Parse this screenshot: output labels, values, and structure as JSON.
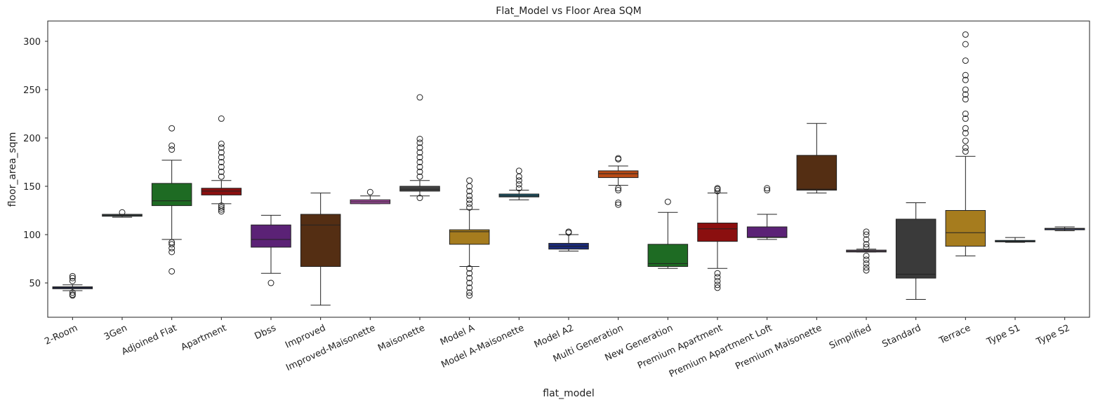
{
  "chart_data": {
    "type": "box",
    "title": "Flat_Model vs Floor Area SQM",
    "x_label": "flat_model",
    "y_label": "floor_area_sqm",
    "categories": [
      "2-Room",
      "3Gen",
      "Adjoined Flat",
      "Apartment",
      "Dbss",
      "Improved",
      "Improved-Maisonette",
      "Maisonette",
      "Model A",
      "Model A-Maisonette",
      "Model A2",
      "Multi Generation",
      "New Generation",
      "Premium Apartment",
      "Premium Apartment Loft",
      "Premium Maisonette",
      "Simplified",
      "Standard",
      "Terrace",
      "Type S1",
      "Type S2"
    ],
    "boxes": [
      {
        "color": "#1f2a5c",
        "low": 42,
        "q1": 44,
        "median": 45,
        "q3": 46,
        "high": 48,
        "outliers": [
          37,
          38,
          40,
          52,
          55,
          57
        ]
      },
      {
        "color": "#4a5a5a",
        "low": 118,
        "q1": 119,
        "median": 120,
        "q3": 121,
        "high": 121,
        "outliers": [
          123
        ]
      },
      {
        "color": "#1e6b23",
        "low": 95,
        "q1": 130,
        "median": 135,
        "q3": 153,
        "high": 177,
        "outliers": [
          62,
          82,
          86,
          90,
          92,
          188,
          192,
          210
        ]
      },
      {
        "color": "#8b0f0f",
        "low": 132,
        "q1": 141,
        "median": 145,
        "q3": 148,
        "high": 156,
        "outliers": [
          124,
          126,
          128,
          130,
          160,
          165,
          170,
          175,
          180,
          185,
          190,
          194,
          220
        ]
      },
      {
        "color": "#5b2276",
        "low": 60,
        "q1": 87,
        "median": 95,
        "q3": 110,
        "high": 120,
        "outliers": [
          50
        ]
      },
      {
        "color": "#542e13",
        "low": 27,
        "q1": 67,
        "median": 110,
        "q3": 121,
        "high": 143,
        "outliers": []
      },
      {
        "color": "#a14b9e",
        "low": 132,
        "q1": 132,
        "median": 134,
        "q3": 136,
        "high": 140,
        "outliers": [
          144
        ]
      },
      {
        "color": "#444444",
        "low": 140,
        "q1": 145,
        "median": 147,
        "q3": 150,
        "high": 156,
        "outliers": [
          138,
          160,
          165,
          170,
          175,
          180,
          185,
          190,
          195,
          199,
          242
        ]
      },
      {
        "color": "#a67c1e",
        "low": 67,
        "q1": 90,
        "median": 103,
        "q3": 105,
        "high": 126,
        "outliers": [
          37,
          40,
          45,
          50,
          55,
          60,
          65,
          128,
          132,
          136,
          140,
          145,
          150,
          156
        ]
      },
      {
        "color": "#1e5a6e",
        "low": 136,
        "q1": 139,
        "median": 140,
        "q3": 142,
        "high": 146,
        "outliers": [
          148,
          152,
          156,
          160,
          166
        ]
      },
      {
        "color": "#1a2a78",
        "low": 83,
        "q1": 85,
        "median": 88,
        "q3": 91,
        "high": 100,
        "outliers": [
          102,
          103
        ]
      },
      {
        "color": "#b84a15",
        "low": 151,
        "q1": 159,
        "median": 163,
        "q3": 166,
        "high": 171,
        "outliers": [
          131,
          133,
          146,
          148,
          178,
          179
        ]
      },
      {
        "color": "#1e6b23",
        "low": 65,
        "q1": 67,
        "median": 70,
        "q3": 90,
        "high": 123,
        "outliers": [
          134
        ]
      },
      {
        "color": "#8b0f0f",
        "low": 65,
        "q1": 93,
        "median": 106,
        "q3": 112,
        "high": 143,
        "outliers": [
          45,
          48,
          52,
          56,
          60,
          145,
          147,
          148
        ]
      },
      {
        "color": "#5b2276",
        "low": 95,
        "q1": 97,
        "median": 97.5,
        "q3": 108,
        "high": 121,
        "outliers": [
          146,
          148
        ]
      },
      {
        "color": "#542e13",
        "low": 143,
        "q1": 146,
        "median": 147,
        "q3": 182,
        "high": 215,
        "outliers": []
      },
      {
        "color": "#8a6a8a",
        "low": 82,
        "q1": 82,
        "median": 83,
        "q3": 84,
        "high": 85,
        "outliers": [
          63,
          66,
          70,
          74,
          78,
          87,
          90,
          95,
          100,
          103
        ]
      },
      {
        "color": "#3a3a3a",
        "low": 33,
        "q1": 55,
        "median": 59,
        "q3": 116,
        "high": 133,
        "outliers": []
      },
      {
        "color": "#a67c1e",
        "low": 78,
        "q1": 88,
        "median": 102,
        "q3": 125,
        "high": 181,
        "outliers": [
          186,
          190,
          197,
          205,
          210,
          220,
          225,
          240,
          245,
          250,
          260,
          265,
          280,
          297,
          307
        ]
      },
      {
        "color": "#1e5a6e",
        "low": 92,
        "q1": 92.5,
        "median": 93,
        "q3": 94,
        "high": 97,
        "outliers": []
      },
      {
        "color": "#1a2a78",
        "low": 104,
        "q1": 105,
        "median": 106,
        "q3": 106.5,
        "high": 108,
        "outliers": []
      }
    ],
    "ylim": [
      14.5,
      321
    ],
    "yticks": [
      50,
      100,
      150,
      200,
      250,
      300
    ],
    "grid": false
  }
}
